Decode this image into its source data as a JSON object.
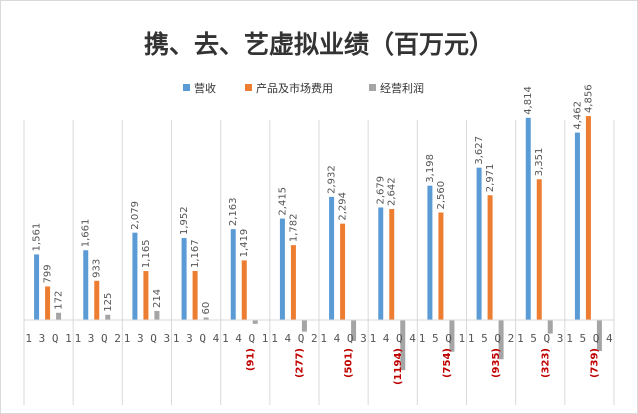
{
  "chart_data": {
    "type": "bar",
    "title": "携、去、艺虚拟业绩（百万元）",
    "categories": [
      "13Q1",
      "13Q2",
      "13Q3",
      "13Q4",
      "14Q1",
      "14Q2",
      "14Q3",
      "14Q4",
      "15Q1",
      "15Q2",
      "15Q3",
      "15Q4"
    ],
    "series": [
      {
        "name": "营收",
        "color": "#5B9BD5",
        "values": [
          1561,
          1661,
          2079,
          1952,
          2163,
          2415,
          2932,
          2679,
          3198,
          3627,
          4814,
          4462
        ],
        "labels": [
          "1,561",
          "1,661",
          "2,079",
          "1,952",
          "2,163",
          "2,415",
          "2,932",
          "2,679",
          "3,198",
          "3,627",
          "4,814",
          "4,462"
        ]
      },
      {
        "name": "产品及市场费用",
        "color": "#ED7D31",
        "values": [
          799,
          933,
          1165,
          1167,
          1419,
          1782,
          2294,
          2642,
          2560,
          2971,
          3351,
          4856
        ],
        "labels": [
          "799",
          "933",
          "1,165",
          "1,167",
          "1,419",
          "1,782",
          "2,294",
          "2,642",
          "2,560",
          "2,971",
          "3,351",
          "4,856"
        ]
      },
      {
        "name": "经营利润",
        "color": "#A5A5A5",
        "values": [
          172,
          125,
          214,
          60,
          -91,
          -277,
          -501,
          -1194,
          -754,
          -935,
          -323,
          -739
        ],
        "labels": [
          "172",
          "125",
          "214",
          "60",
          "(91)",
          "(277)",
          "(501)",
          "(1194)",
          "(754)",
          "(935)",
          "(323)",
          "(739)"
        ]
      }
    ],
    "negative_label_color": "#C00000",
    "legend_position": "top",
    "gridlines": "vertical category separators"
  }
}
